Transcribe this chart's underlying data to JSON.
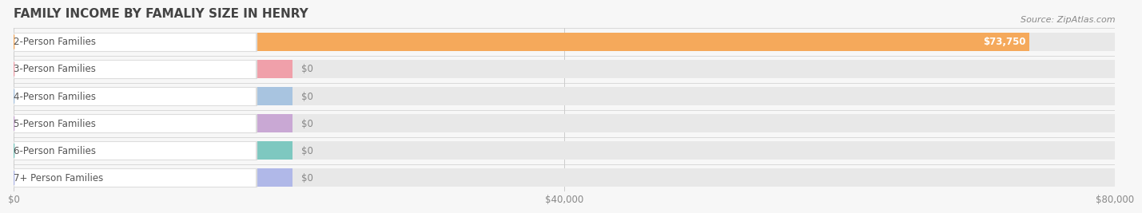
{
  "title": "FAMILY INCOME BY FAMALIY SIZE IN HENRY",
  "source": "Source: ZipAtlas.com",
  "categories": [
    "2-Person Families",
    "3-Person Families",
    "4-Person Families",
    "5-Person Families",
    "6-Person Families",
    "7+ Person Families"
  ],
  "values": [
    73750,
    0,
    0,
    0,
    0,
    0
  ],
  "bar_colors": [
    "#F5A95B",
    "#F0A0AA",
    "#A8C4E0",
    "#C9A8D4",
    "#7EC8C0",
    "#B0B8E8"
  ],
  "value_labels": [
    "$73,750",
    "$0",
    "$0",
    "$0",
    "$0",
    "$0"
  ],
  "xlim_max": 80000,
  "xticks": [
    0,
    40000,
    80000
  ],
  "xtick_labels": [
    "$0",
    "$40,000",
    "$80,000"
  ],
  "background_color": "#f7f7f7",
  "bar_bg_color": "#e8e8e8",
  "title_fontsize": 11,
  "label_fontsize": 8.5,
  "source_fontsize": 8
}
